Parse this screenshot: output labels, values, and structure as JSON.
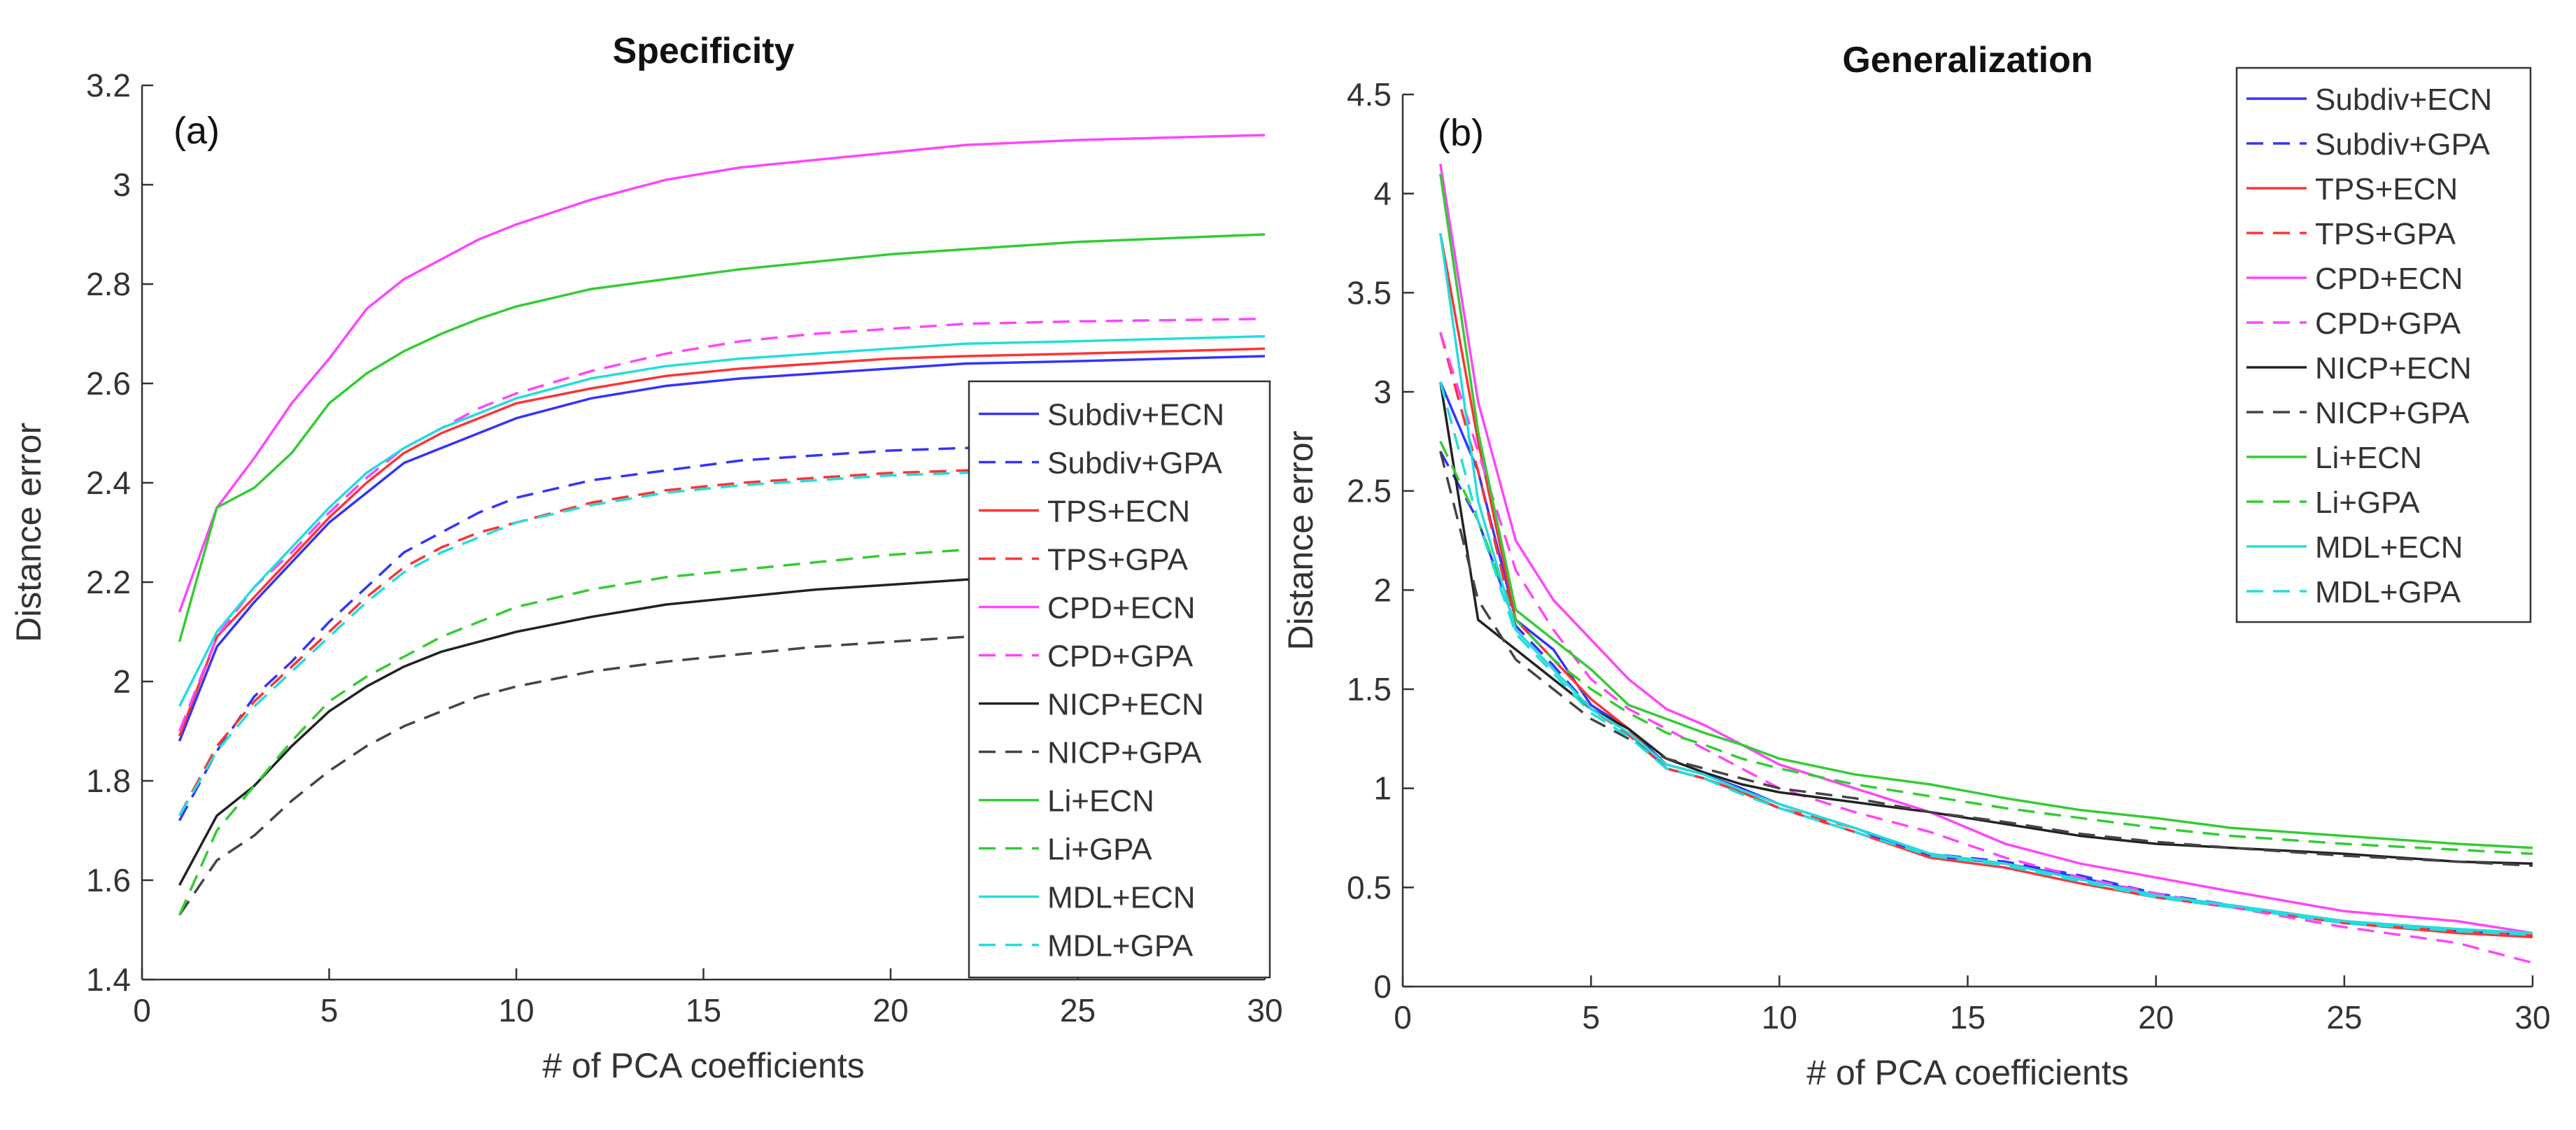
{
  "chart_data": [
    {
      "type": "line",
      "title": "Specificity",
      "panel_label": "(a)",
      "xlabel": "# of PCA coefficients",
      "ylabel": "Distance error",
      "xlim": [
        0,
        30
      ],
      "ylim": [
        1.4,
        3.2
      ],
      "xticks": [
        0,
        5,
        10,
        15,
        20,
        25,
        30
      ],
      "yticks": [
        1.4,
        1.6,
        1.8,
        2,
        2.2,
        2.4,
        2.6,
        2.8,
        3,
        3.2
      ],
      "ytick_labels": [
        "1.4",
        "1.6",
        "1.8",
        "2",
        "2.2",
        "2.4",
        "2.6",
        "2.8",
        "3",
        "3.2"
      ],
      "legend_position": "bottom-right",
      "grid": false,
      "x": [
        1,
        2,
        3,
        4,
        5,
        6,
        7,
        8,
        9,
        10,
        12,
        14,
        16,
        18,
        20,
        22,
        25,
        30
      ],
      "series": [
        {
          "name": "Subdiv+ECN",
          "color": "#3333ff",
          "dash": "solid",
          "values": [
            1.88,
            2.07,
            2.16,
            2.24,
            2.32,
            2.38,
            2.44,
            2.47,
            2.5,
            2.53,
            2.57,
            2.595,
            2.61,
            2.62,
            2.63,
            2.64,
            2.645,
            2.655
          ]
        },
        {
          "name": "Subdiv+GPA",
          "color": "#3333ff",
          "dash": "dashed",
          "values": [
            1.72,
            1.86,
            1.97,
            2.04,
            2.12,
            2.19,
            2.26,
            2.3,
            2.34,
            2.37,
            2.405,
            2.425,
            2.445,
            2.455,
            2.465,
            2.47,
            2.475,
            2.48
          ]
        },
        {
          "name": "TPS+ECN",
          "color": "#ff3333",
          "dash": "solid",
          "values": [
            1.89,
            2.09,
            2.17,
            2.25,
            2.33,
            2.4,
            2.46,
            2.5,
            2.53,
            2.56,
            2.59,
            2.615,
            2.63,
            2.64,
            2.65,
            2.655,
            2.66,
            2.67
          ]
        },
        {
          "name": "TPS+GPA",
          "color": "#ff3333",
          "dash": "dashed",
          "values": [
            1.73,
            1.87,
            1.96,
            2.03,
            2.1,
            2.17,
            2.23,
            2.27,
            2.3,
            2.32,
            2.36,
            2.385,
            2.4,
            2.41,
            2.42,
            2.425,
            2.43,
            2.44
          ]
        },
        {
          "name": "CPD+ECN",
          "color": "#ff44ff",
          "dash": "solid",
          "values": [
            2.14,
            2.35,
            2.45,
            2.56,
            2.65,
            2.75,
            2.81,
            2.85,
            2.89,
            2.92,
            2.97,
            3.01,
            3.035,
            3.05,
            3.065,
            3.08,
            3.09,
            3.1
          ]
        },
        {
          "name": "CPD+GPA",
          "color": "#ff44ff",
          "dash": "dashed",
          "values": [
            1.9,
            2.09,
            2.19,
            2.26,
            2.34,
            2.41,
            2.47,
            2.51,
            2.55,
            2.58,
            2.625,
            2.66,
            2.685,
            2.7,
            2.71,
            2.72,
            2.725,
            2.73
          ]
        },
        {
          "name": "NICP+ECN",
          "color": "#222222",
          "dash": "solid",
          "values": [
            1.59,
            1.73,
            1.79,
            1.87,
            1.94,
            1.99,
            2.03,
            2.06,
            2.08,
            2.1,
            2.13,
            2.155,
            2.17,
            2.185,
            2.195,
            2.205,
            2.215,
            2.225
          ]
        },
        {
          "name": "NICP+GPA",
          "color": "#444444",
          "dash": "dashed",
          "values": [
            1.53,
            1.64,
            1.69,
            1.76,
            1.82,
            1.87,
            1.91,
            1.94,
            1.97,
            1.99,
            2.02,
            2.04,
            2.055,
            2.07,
            2.08,
            2.09,
            2.1,
            2.11
          ]
        },
        {
          "name": "Li+ECN",
          "color": "#33cc33",
          "dash": "solid",
          "values": [
            2.08,
            2.35,
            2.39,
            2.46,
            2.56,
            2.62,
            2.665,
            2.7,
            2.73,
            2.755,
            2.79,
            2.81,
            2.83,
            2.845,
            2.86,
            2.87,
            2.885,
            2.9
          ]
        },
        {
          "name": "Li+GPA",
          "color": "#33cc33",
          "dash": "dashed",
          "values": [
            1.53,
            1.7,
            1.79,
            1.88,
            1.96,
            2.01,
            2.05,
            2.09,
            2.12,
            2.15,
            2.185,
            2.21,
            2.225,
            2.24,
            2.255,
            2.265,
            2.275,
            2.29
          ]
        },
        {
          "name": "MDL+ECN",
          "color": "#22dddd",
          "dash": "solid",
          "values": [
            1.95,
            2.1,
            2.19,
            2.27,
            2.35,
            2.42,
            2.47,
            2.51,
            2.54,
            2.57,
            2.61,
            2.635,
            2.65,
            2.66,
            2.67,
            2.68,
            2.685,
            2.695
          ]
        },
        {
          "name": "MDL+GPA",
          "color": "#22dddd",
          "dash": "dashed",
          "values": [
            1.73,
            1.86,
            1.95,
            2.02,
            2.09,
            2.16,
            2.22,
            2.26,
            2.29,
            2.32,
            2.355,
            2.38,
            2.395,
            2.405,
            2.415,
            2.42,
            2.425,
            2.43
          ]
        }
      ]
    },
    {
      "type": "line",
      "title": "Generalization",
      "panel_label": "(b)",
      "xlabel": "# of PCA coefficients",
      "ylabel": "Distance error",
      "xlim": [
        0,
        30
      ],
      "ylim": [
        0,
        4.5
      ],
      "xticks": [
        0,
        5,
        10,
        15,
        20,
        25,
        30
      ],
      "yticks": [
        0,
        0.5,
        1,
        1.5,
        2,
        2.5,
        3,
        3.5,
        4,
        4.5
      ],
      "ytick_labels": [
        "0",
        "0.5",
        "1",
        "1.5",
        "2",
        "2.5",
        "3",
        "3.5",
        "4",
        "4.5"
      ],
      "legend_position": "top-right",
      "grid": false,
      "x": [
        1,
        2,
        3,
        4,
        5,
        6,
        7,
        8,
        9,
        10,
        12,
        14,
        16,
        18,
        20,
        22,
        25,
        28,
        30
      ],
      "series": [
        {
          "name": "Subdiv+ECN",
          "color": "#3333ff",
          "dash": "solid",
          "values": [
            3.05,
            2.6,
            1.85,
            1.7,
            1.42,
            1.3,
            1.12,
            1.07,
            1.0,
            0.92,
            0.8,
            0.66,
            0.62,
            0.55,
            0.46,
            0.4,
            0.32,
            0.28,
            0.26
          ]
        },
        {
          "name": "Subdiv+GPA",
          "color": "#3333ff",
          "dash": "dashed",
          "values": [
            2.7,
            2.35,
            1.82,
            1.62,
            1.4,
            1.28,
            1.1,
            1.05,
            0.98,
            0.9,
            0.78,
            0.67,
            0.63,
            0.56,
            0.47,
            0.41,
            0.33,
            0.28,
            0.25
          ]
        },
        {
          "name": "TPS+ECN",
          "color": "#ff3333",
          "dash": "solid",
          "values": [
            3.8,
            2.75,
            1.85,
            1.65,
            1.45,
            1.3,
            1.1,
            1.05,
            0.98,
            0.9,
            0.78,
            0.65,
            0.6,
            0.52,
            0.45,
            0.4,
            0.32,
            0.27,
            0.25
          ]
        },
        {
          "name": "TPS+GPA",
          "color": "#ff3333",
          "dash": "dashed",
          "values": [
            3.3,
            2.6,
            1.8,
            1.6,
            1.4,
            1.27,
            1.1,
            1.05,
            0.98,
            0.9,
            0.8,
            0.67,
            0.62,
            0.54,
            0.46,
            0.41,
            0.33,
            0.28,
            0.26
          ]
        },
        {
          "name": "CPD+ECN",
          "color": "#ff44ff",
          "dash": "solid",
          "values": [
            4.15,
            2.95,
            2.25,
            1.95,
            1.75,
            1.55,
            1.4,
            1.32,
            1.22,
            1.12,
            1.0,
            0.88,
            0.72,
            0.62,
            0.55,
            0.48,
            0.38,
            0.33,
            0.27
          ]
        },
        {
          "name": "CPD+GPA",
          "color": "#ff44ff",
          "dash": "dashed",
          "values": [
            3.3,
            2.7,
            2.1,
            1.8,
            1.55,
            1.4,
            1.3,
            1.2,
            1.1,
            1.0,
            0.88,
            0.78,
            0.65,
            0.55,
            0.47,
            0.4,
            0.3,
            0.22,
            0.12
          ]
        },
        {
          "name": "NICP+ECN",
          "color": "#222222",
          "dash": "solid",
          "values": [
            3.05,
            1.85,
            1.7,
            1.55,
            1.4,
            1.3,
            1.15,
            1.08,
            1.02,
            0.98,
            0.93,
            0.88,
            0.82,
            0.76,
            0.72,
            0.7,
            0.67,
            0.63,
            0.62
          ]
        },
        {
          "name": "NICP+GPA",
          "color": "#444444",
          "dash": "dashed",
          "values": [
            2.7,
            1.95,
            1.65,
            1.5,
            1.35,
            1.25,
            1.15,
            1.1,
            1.05,
            1.0,
            0.95,
            0.88,
            0.83,
            0.77,
            0.73,
            0.7,
            0.66,
            0.63,
            0.61
          ]
        },
        {
          "name": "Li+ECN",
          "color": "#33cc33",
          "dash": "solid",
          "values": [
            4.1,
            2.8,
            1.9,
            1.75,
            1.6,
            1.42,
            1.35,
            1.28,
            1.22,
            1.15,
            1.07,
            1.02,
            0.95,
            0.89,
            0.85,
            0.8,
            0.76,
            0.72,
            0.7
          ]
        },
        {
          "name": "Li+GPA",
          "color": "#33cc33",
          "dash": "dashed",
          "values": [
            2.75,
            2.35,
            1.85,
            1.65,
            1.5,
            1.38,
            1.28,
            1.22,
            1.15,
            1.1,
            1.02,
            0.96,
            0.9,
            0.85,
            0.8,
            0.76,
            0.72,
            0.69,
            0.67
          ]
        },
        {
          "name": "MDL+ECN",
          "color": "#22dddd",
          "dash": "solid",
          "values": [
            3.8,
            2.45,
            1.8,
            1.6,
            1.4,
            1.28,
            1.12,
            1.07,
            0.99,
            0.92,
            0.8,
            0.67,
            0.62,
            0.54,
            0.46,
            0.41,
            0.33,
            0.29,
            0.27
          ]
        },
        {
          "name": "MDL+GPA",
          "color": "#22dddd",
          "dash": "dashed",
          "values": [
            3.05,
            2.35,
            1.78,
            1.58,
            1.38,
            1.26,
            1.1,
            1.05,
            0.97,
            0.9,
            0.78,
            0.66,
            0.61,
            0.53,
            0.45,
            0.4,
            0.32,
            0.28,
            0.26
          ]
        }
      ]
    }
  ]
}
